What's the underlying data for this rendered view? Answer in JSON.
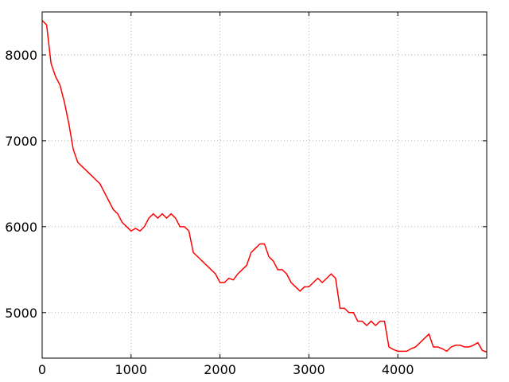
{
  "chart_data": {
    "type": "line",
    "x": [
      0,
      50,
      100,
      150,
      200,
      250,
      300,
      350,
      400,
      450,
      500,
      550,
      600,
      650,
      700,
      750,
      800,
      850,
      900,
      950,
      1000,
      1050,
      1100,
      1150,
      1200,
      1250,
      1300,
      1350,
      1400,
      1450,
      1500,
      1550,
      1600,
      1650,
      1700,
      1750,
      1800,
      1850,
      1900,
      1950,
      2000,
      2050,
      2100,
      2150,
      2200,
      2250,
      2300,
      2350,
      2400,
      2450,
      2500,
      2550,
      2600,
      2650,
      2700,
      2750,
      2800,
      2850,
      2900,
      2950,
      3000,
      3050,
      3100,
      3150,
      3200,
      3250,
      3300,
      3350,
      3400,
      3450,
      3500,
      3550,
      3600,
      3650,
      3700,
      3750,
      3800,
      3850,
      3900,
      3950,
      4000,
      4050,
      4100,
      4150,
      4200,
      4250,
      4300,
      4350,
      4400,
      4450,
      4500,
      4550,
      4600,
      4650,
      4700,
      4750,
      4800,
      4850,
      4900,
      4950,
      5000
    ],
    "series": [
      {
        "color": "#ff0000",
        "values": [
          8400,
          8350,
          7900,
          7750,
          7650,
          7450,
          7200,
          6900,
          6750,
          6700,
          6650,
          6600,
          6550,
          6500,
          6400,
          6300,
          6200,
          6150,
          6050,
          6000,
          5950,
          5980,
          5950,
          6000,
          6100,
          6150,
          6100,
          6150,
          6100,
          6150,
          6100,
          6000,
          6000,
          5950,
          5700,
          5650,
          5600,
          5550,
          5500,
          5450,
          5350,
          5350,
          5400,
          5380,
          5450,
          5500,
          5550,
          5700,
          5750,
          5800,
          5800,
          5650,
          5600,
          5500,
          5500,
          5450,
          5350,
          5300,
          5250,
          5300,
          5300,
          5350,
          5400,
          5350,
          5400,
          5450,
          5400,
          5050,
          5050,
          5000,
          5000,
          4900,
          4900,
          4850,
          4900,
          4850,
          4900,
          4900,
          4600,
          4570,
          4550,
          4550,
          4550,
          4580,
          4600,
          4650,
          4700,
          4750,
          4600,
          4600,
          4580,
          4550,
          4600,
          4620,
          4620,
          4600,
          4600,
          4620,
          4650,
          4560,
          4540
        ]
      }
    ],
    "xlim": [
      0,
      5000
    ],
    "ylim": [
      4470,
      8500
    ],
    "xticks": [
      0,
      1000,
      2000,
      3000,
      4000
    ],
    "yticks": [
      5000,
      6000,
      7000,
      8000
    ],
    "grid": true
  }
}
